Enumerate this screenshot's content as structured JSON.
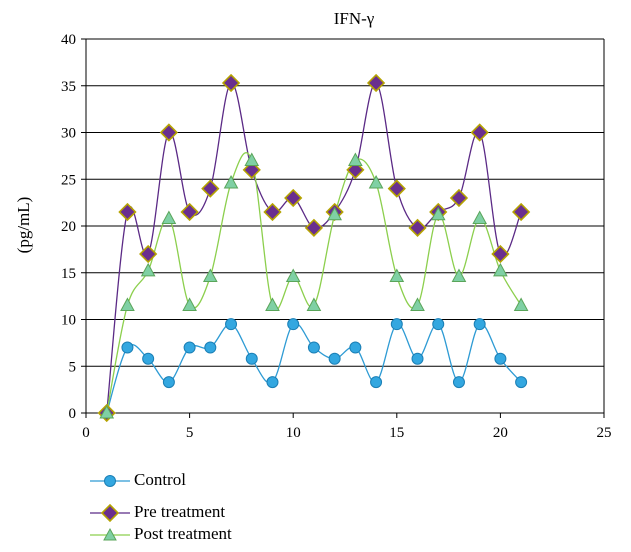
{
  "chart_data": {
    "type": "line",
    "title": "IFN-γ",
    "xlabel": "",
    "ylabel": "(pg/mL)",
    "xlim": [
      0,
      25
    ],
    "ylim": [
      0,
      40
    ],
    "x_ticks": [
      0,
      5,
      10,
      15,
      20,
      25
    ],
    "y_ticks": [
      0,
      5,
      10,
      15,
      20,
      25,
      30,
      35,
      40
    ],
    "grid": "horizontal",
    "legend_position": "bottom-left",
    "x": [
      1,
      2,
      3,
      4,
      5,
      6,
      7,
      8,
      9,
      10,
      11,
      12,
      13,
      14,
      15,
      16,
      17,
      18,
      19,
      20,
      21
    ],
    "series": [
      {
        "name": "Control",
        "line_color": "#2e9bd4",
        "marker": "circle",
        "marker_fill": "#33a7e0",
        "marker_stroke": "#1b7fb5",
        "values": [
          0,
          7.0,
          5.8,
          3.3,
          7.0,
          7.0,
          9.5,
          5.8,
          3.3,
          9.5,
          7.0,
          5.8,
          7.0,
          3.3,
          9.5,
          5.8,
          9.5,
          3.3,
          9.5,
          5.8,
          3.3
        ]
      },
      {
        "name": "Pre treatment",
        "line_color": "#5b2a86",
        "marker": "diamond",
        "marker_fill": "#6a2f8f",
        "marker_stroke": "#b5a300",
        "values": [
          0,
          21.5,
          17.0,
          30.0,
          21.5,
          24.0,
          35.3,
          26.0,
          21.5,
          23.0,
          19.8,
          21.5,
          26.0,
          35.3,
          24.0,
          19.8,
          21.5,
          23.0,
          30.0,
          17.0,
          21.5
        ]
      },
      {
        "name": "Post treatment",
        "line_color": "#8ccf4d",
        "marker": "triangle",
        "marker_fill": "#7fd0a4",
        "marker_stroke": "#5aa55a",
        "values": [
          0,
          11.5,
          15.2,
          20.8,
          11.5,
          14.6,
          24.6,
          27.0,
          11.5,
          14.6,
          11.5,
          21.2,
          27.0,
          24.6,
          14.6,
          11.5,
          21.2,
          14.6,
          20.8,
          15.2,
          11.5
        ]
      }
    ]
  }
}
